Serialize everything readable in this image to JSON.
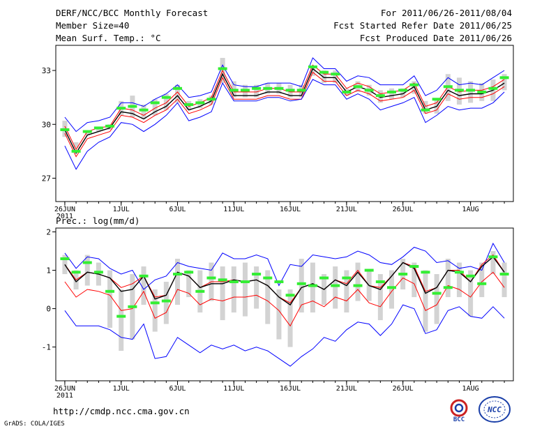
{
  "header": {
    "title": "DERF/NCC/BCC Monthly Forecast",
    "member_size": "Member Size=40",
    "variable": "Mean Surf. Temp.: °C",
    "period": "For 2011/06/26-2011/08/04",
    "fcst_start": "Fcst Started Refer Date 2011/06/25",
    "fcst_produced": "Fcst Produced Date 2011/06/26"
  },
  "footer": {
    "url": "http://cmdp.ncc.cma.gov.cn",
    "grads": "GrADS: COLA/IGES",
    "logo_bcc": "BCC",
    "logo_ncc": "NCC"
  },
  "colors": {
    "envelope": "#0000ff",
    "mean": "#000000",
    "band": "#ff0000",
    "box": "#d3d3d3",
    "marker": "#33ee33"
  },
  "chart_data": [
    {
      "type": "line",
      "name": "temperature",
      "title": "Mean Surf. Temp.: °C",
      "xlabel": "",
      "ylabel": "",
      "x_ticks": [
        {
          "day": 0,
          "label": "26JUN"
        },
        {
          "day": 5,
          "label": "1JUL"
        },
        {
          "day": 10,
          "label": "6JUL"
        },
        {
          "day": 15,
          "label": "11JUL"
        },
        {
          "day": 20,
          "label": "16JUL"
        },
        {
          "day": 25,
          "label": "21JUL"
        },
        {
          "day": 30,
          "label": "26JUL"
        },
        {
          "day": 36,
          "label": "1AUG"
        }
      ],
      "year_label": "2011",
      "y_ticks": [
        27,
        30,
        33
      ],
      "ylim": [
        25.7,
        34.4
      ],
      "xlim": [
        -0.8,
        39.8
      ],
      "series": [
        {
          "name": "max",
          "color": "#0000ff",
          "values": [
            30.4,
            29.6,
            30.1,
            30.2,
            30.4,
            31.2,
            31.2,
            31.0,
            31.4,
            31.7,
            32.2,
            31.5,
            31.6,
            31.8,
            33.3,
            32.2,
            32.1,
            32.1,
            32.3,
            32.3,
            32.3,
            32.1,
            33.7,
            33.1,
            33.1,
            32.4,
            32.7,
            32.6,
            32.2,
            32.2,
            32.2,
            32.7,
            31.6,
            31.9,
            32.6,
            32.2,
            32.3,
            32.2,
            32.6,
            33.0
          ]
        },
        {
          "name": "upper",
          "color": "#ff0000",
          "values": [
            29.9,
            28.6,
            29.6,
            29.8,
            29.9,
            30.9,
            30.8,
            30.5,
            30.9,
            31.2,
            31.8,
            31.0,
            31.2,
            31.5,
            33.0,
            31.8,
            31.8,
            31.8,
            32.0,
            32.0,
            31.8,
            31.8,
            33.3,
            32.8,
            32.8,
            32.0,
            32.3,
            32.1,
            31.7,
            31.8,
            31.9,
            32.3,
            31.0,
            31.2,
            32.1,
            31.8,
            31.9,
            31.9,
            32.1,
            32.5
          ]
        },
        {
          "name": "mean",
          "color": "#000000",
          "values": [
            29.7,
            28.4,
            29.4,
            29.6,
            29.8,
            30.7,
            30.6,
            30.3,
            30.7,
            31.0,
            31.6,
            30.8,
            31.0,
            31.3,
            32.8,
            31.6,
            31.6,
            31.6,
            31.8,
            31.8,
            31.6,
            31.6,
            33.1,
            32.6,
            32.6,
            31.8,
            32.1,
            31.9,
            31.5,
            31.6,
            31.7,
            32.1,
            30.8,
            31.0,
            31.9,
            31.6,
            31.7,
            31.7,
            31.9,
            32.3
          ]
        },
        {
          "name": "lower",
          "color": "#ff0000",
          "values": [
            29.5,
            28.2,
            29.2,
            29.4,
            29.6,
            30.5,
            30.4,
            30.1,
            30.5,
            30.8,
            31.4,
            30.6,
            30.8,
            31.1,
            32.6,
            31.4,
            31.4,
            31.4,
            31.6,
            31.6,
            31.4,
            31.4,
            32.9,
            32.4,
            32.4,
            31.6,
            31.9,
            31.7,
            31.3,
            31.4,
            31.5,
            31.9,
            30.6,
            30.8,
            31.7,
            31.4,
            31.5,
            31.5,
            31.7,
            32.1
          ]
        },
        {
          "name": "min",
          "color": "#0000ff",
          "values": [
            28.8,
            27.5,
            28.5,
            29.0,
            29.3,
            30.1,
            30.0,
            29.6,
            30.0,
            30.5,
            31.2,
            30.2,
            30.4,
            30.7,
            32.3,
            31.3,
            31.3,
            31.3,
            31.5,
            31.5,
            31.3,
            31.4,
            32.5,
            32.2,
            32.2,
            31.4,
            31.7,
            31.4,
            30.8,
            31.0,
            31.2,
            31.5,
            30.1,
            30.5,
            31.0,
            30.8,
            30.9,
            30.9,
            31.2,
            31.8
          ]
        }
      ],
      "boxes_low": [
        29.3,
        28.7,
        29.4,
        29.6,
        29.7,
        30.5,
        30.4,
        30.3,
        30.5,
        30.8,
        31.2,
        30.8,
        30.9,
        31.1,
        32.3,
        31.5,
        31.5,
        31.5,
        31.7,
        31.7,
        31.5,
        31.5,
        32.7,
        32.3,
        32.3,
        31.6,
        31.8,
        31.6,
        31.2,
        31.4,
        31.5,
        31.7,
        30.6,
        30.6,
        31.3,
        31.1,
        31.2,
        31.3,
        31.3,
        31.9
      ],
      "boxes_high": [
        30.2,
        29.0,
        29.6,
        29.8,
        30.0,
        31.3,
        31.6,
        31.1,
        31.4,
        31.7,
        32.2,
        31.3,
        31.4,
        31.6,
        33.7,
        32.4,
        32.2,
        32.2,
        32.3,
        32.3,
        32.2,
        32.2,
        33.2,
        33.0,
        33.0,
        32.0,
        32.4,
        32.2,
        31.9,
        32.0,
        32.0,
        32.4,
        31.3,
        31.4,
        32.8,
        32.6,
        32.4,
        32.3,
        32.5,
        32.8
      ],
      "markers": [
        29.7,
        28.5,
        29.6,
        29.8,
        29.9,
        30.9,
        31.0,
        30.8,
        31.2,
        31.5,
        32.0,
        31.1,
        31.2,
        31.4,
        33.1,
        31.9,
        31.9,
        32.0,
        32.0,
        32.0,
        31.9,
        31.9,
        33.2,
        32.9,
        32.8,
        31.8,
        32.1,
        31.9,
        31.6,
        31.8,
        31.9,
        32.2,
        30.8,
        31.4,
        32.1,
        31.9,
        31.9,
        31.8,
        32.0,
        32.6
      ]
    },
    {
      "type": "line",
      "name": "precipitation",
      "title": "Prec.: log(mm/d)",
      "xlabel": "",
      "ylabel": "",
      "x_ticks": [
        {
          "day": 0,
          "label": "26JUN"
        },
        {
          "day": 5,
          "label": "1JUL"
        },
        {
          "day": 10,
          "label": "6JUL"
        },
        {
          "day": 15,
          "label": "11JUL"
        },
        {
          "day": 20,
          "label": "16JUL"
        },
        {
          "day": 25,
          "label": "21JUL"
        },
        {
          "day": 30,
          "label": "26JUL"
        },
        {
          "day": 36,
          "label": "1AUG"
        }
      ],
      "year_label": "2011",
      "y_ticks": [
        -1,
        0,
        1,
        2
      ],
      "ylim": [
        -1.88,
        2.1
      ],
      "xlim": [
        -0.8,
        39.8
      ],
      "series": [
        {
          "name": "max",
          "color": "#0000ff",
          "values": [
            1.45,
            1.05,
            1.35,
            1.3,
            1.05,
            0.9,
            1.0,
            0.5,
            0.75,
            0.85,
            1.2,
            1.1,
            1.05,
            1.0,
            1.45,
            1.3,
            1.3,
            1.4,
            1.3,
            0.6,
            1.15,
            1.1,
            1.4,
            1.35,
            1.3,
            1.35,
            1.5,
            1.4,
            1.2,
            1.15,
            1.35,
            1.6,
            1.5,
            1.2,
            1.25,
            1.05,
            1.1,
            1.0,
            1.7,
            1.2
          ]
        },
        {
          "name": "upper",
          "color": "#ff0000",
          "values": [
            1.15,
            0.75,
            0.95,
            0.9,
            0.8,
            0.55,
            0.65,
            0.85,
            0.3,
            0.35,
            0.95,
            0.85,
            0.55,
            0.7,
            0.7,
            0.75,
            0.7,
            0.75,
            0.6,
            0.3,
            0.15,
            0.55,
            0.65,
            0.5,
            0.75,
            0.65,
            1.0,
            0.6,
            0.55,
            0.85,
            1.2,
            1.1,
            0.45,
            0.55,
            1.0,
            1.0,
            0.7,
            1.15,
            1.4,
            0.95
          ]
        },
        {
          "name": "mean",
          "color": "#000000",
          "values": [
            1.15,
            0.7,
            0.95,
            0.9,
            0.8,
            0.45,
            0.5,
            0.85,
            0.25,
            0.35,
            0.95,
            0.85,
            0.55,
            0.65,
            0.65,
            0.75,
            0.7,
            0.75,
            0.6,
            0.3,
            0.1,
            0.55,
            0.65,
            0.5,
            0.75,
            0.6,
            0.95,
            0.6,
            0.5,
            0.85,
            1.2,
            1.05,
            0.4,
            0.55,
            1.0,
            0.95,
            0.7,
            1.1,
            1.35,
            0.95
          ]
        },
        {
          "name": "lower",
          "color": "#ff0000",
          "values": [
            0.7,
            0.3,
            0.5,
            0.45,
            0.35,
            -0.05,
            0.0,
            0.45,
            -0.25,
            -0.1,
            0.5,
            0.4,
            0.1,
            0.25,
            0.2,
            0.3,
            0.3,
            0.35,
            0.2,
            -0.05,
            -0.45,
            0.1,
            0.2,
            0.05,
            0.3,
            0.2,
            0.5,
            0.15,
            0.05,
            0.45,
            0.8,
            0.65,
            -0.05,
            0.1,
            0.6,
            0.5,
            0.3,
            0.7,
            0.95,
            0.55
          ]
        },
        {
          "name": "min",
          "color": "#0000ff",
          "values": [
            -0.05,
            -0.45,
            -0.45,
            -0.45,
            -0.55,
            -0.75,
            -0.8,
            -0.4,
            -1.3,
            -1.25,
            -0.75,
            -0.95,
            -1.15,
            -0.95,
            -1.05,
            -0.95,
            -1.1,
            -1.0,
            -1.1,
            -1.3,
            -1.5,
            -1.25,
            -1.05,
            -0.75,
            -0.85,
            -0.55,
            -0.35,
            -0.4,
            -0.7,
            -0.4,
            0.1,
            0.0,
            -0.65,
            -0.55,
            -0.05,
            0.05,
            -0.2,
            -0.25,
            0.05,
            -0.25
          ]
        }
      ],
      "boxes_low": [
        0.9,
        0.5,
        0.6,
        0.6,
        -0.5,
        -1.1,
        -0.8,
        0.1,
        -0.6,
        -0.4,
        0.1,
        0.3,
        -0.1,
        0.2,
        -0.3,
        -0.1,
        -0.2,
        0.0,
        -0.4,
        -0.8,
        -1.0,
        -0.1,
        -0.1,
        0.1,
        0.0,
        -0.1,
        0.2,
        0.2,
        -0.3,
        0.0,
        0.5,
        0.3,
        -0.6,
        -0.4,
        0.3,
        0.3,
        -0.2,
        0.3,
        0.9,
        0.3
      ],
      "boxes_high": [
        1.4,
        1.0,
        1.4,
        1.2,
        1.0,
        0.5,
        0.9,
        1.1,
        0.5,
        0.7,
        1.3,
        1.0,
        1.0,
        1.2,
        1.1,
        1.1,
        1.2,
        1.1,
        1.0,
        0.5,
        0.5,
        1.3,
        1.2,
        0.9,
        1.1,
        1.0,
        1.2,
        1.0,
        0.9,
        1.0,
        1.3,
        1.2,
        1.0,
        0.9,
        1.3,
        1.2,
        1.0,
        1.2,
        1.5,
        1.2
      ],
      "markers": [
        1.3,
        0.95,
        1.2,
        0.95,
        0.45,
        -0.2,
        0.05,
        0.85,
        0.15,
        0.2,
        0.9,
        0.95,
        0.45,
        0.8,
        0.75,
        0.7,
        0.7,
        0.9,
        0.8,
        0.7,
        0.35,
        0.65,
        0.6,
        0.8,
        0.6,
        0.8,
        0.6,
        1.0,
        0.7,
        0.55,
        0.9,
        1.1,
        0.95,
        0.4,
        0.55,
        0.95,
        0.85,
        0.65,
        1.35,
        0.9
      ]
    }
  ]
}
